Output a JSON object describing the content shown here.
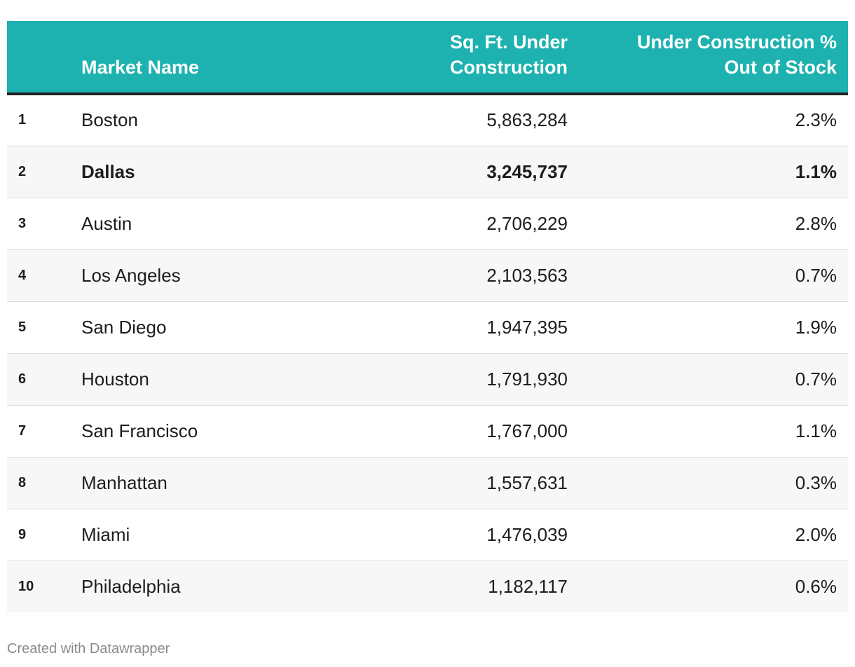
{
  "chart_data": {
    "type": "table",
    "columns": {
      "rank": "",
      "name": "Market Name",
      "sqft_line1": "Sq. Ft. Under",
      "sqft_line2": "Construction",
      "pct_line1": "Under Construction %",
      "pct_line2": "Out of Stock"
    },
    "rows": [
      {
        "rank": "1",
        "name": "Boston",
        "sqft": "5,863,284",
        "pct": "2.3%"
      },
      {
        "rank": "2",
        "name": "Dallas",
        "sqft": "3,245,737",
        "pct": "1.1%",
        "highlight": true
      },
      {
        "rank": "3",
        "name": "Austin",
        "sqft": "2,706,229",
        "pct": "2.8%"
      },
      {
        "rank": "4",
        "name": "Los Angeles",
        "sqft": "2,103,563",
        "pct": "0.7%"
      },
      {
        "rank": "5",
        "name": "San Diego",
        "sqft": "1,947,395",
        "pct": "1.9%"
      },
      {
        "rank": "6",
        "name": "Houston",
        "sqft": "1,791,930",
        "pct": "0.7%"
      },
      {
        "rank": "7",
        "name": "San Francisco",
        "sqft": "1,767,000",
        "pct": "1.1%"
      },
      {
        "rank": "8",
        "name": "Manhattan",
        "sqft": "1,557,631",
        "pct": "0.3%"
      },
      {
        "rank": "9",
        "name": "Miami",
        "sqft": "1,476,039",
        "pct": "2.0%"
      },
      {
        "rank": "10",
        "name": "Philadelphia",
        "sqft": "1,182,117",
        "pct": "0.6%"
      }
    ]
  },
  "colors": {
    "header_bg": "#1db2af",
    "header_text": "#ffffff",
    "stripe": "#f7f7f7"
  },
  "footer": {
    "credit": "Created with Datawrapper"
  }
}
